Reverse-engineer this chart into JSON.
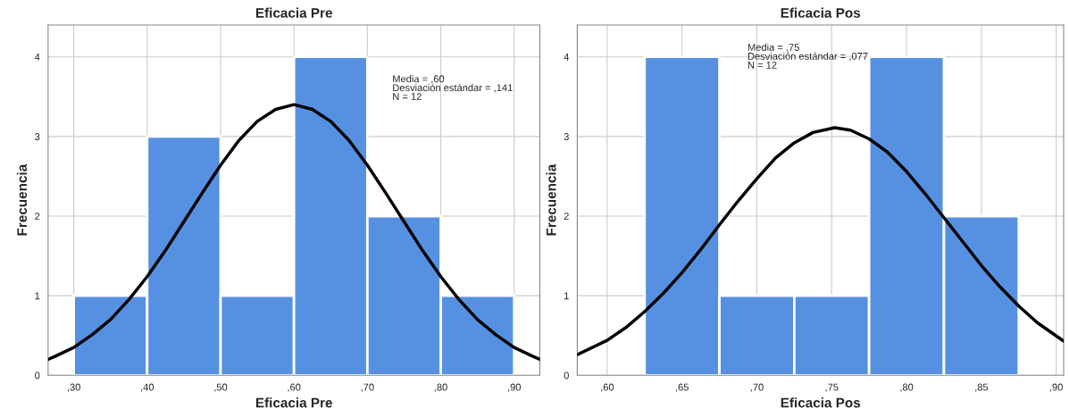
{
  "chart_data": [
    {
      "type": "histogram",
      "title": "Eficacia Pre",
      "xlabel": "Eficacia Pre",
      "ylabel": "Frecuencia",
      "bins": [
        30,
        40,
        50,
        60,
        70,
        80,
        90
      ],
      "values": [
        1,
        3,
        1,
        4,
        2,
        1
      ],
      "color": "#5591e0",
      "xlim": [
        26.5,
        93.5
      ],
      "xticks": [
        {
          "value": 30,
          "label": ",30"
        },
        {
          "value": 40,
          "label": ",40"
        },
        {
          "value": 50,
          "label": ",50"
        },
        {
          "value": 60,
          "label": ",60"
        },
        {
          "value": 70,
          "label": ",70"
        },
        {
          "value": 80,
          "label": ",80"
        },
        {
          "value": 90,
          "label": ",90"
        }
      ],
      "ylim": [
        0,
        4.4
      ],
      "yticks": [
        0,
        1,
        2,
        3,
        4
      ],
      "grid": true,
      "series": [
        {
          "type": "line",
          "color": "#000000",
          "x": [
            26.5,
            27.5,
            30,
            32.5,
            35,
            37.5,
            40,
            42.5,
            45,
            47.5,
            50,
            52.5,
            55,
            57.5,
            60,
            62.5,
            65,
            67.5,
            70,
            72.5,
            75,
            77.5,
            80,
            82.5,
            85,
            87.5,
            90,
            92.5,
            93.5
          ],
          "values": [
            0.2,
            0.24,
            0.35,
            0.51,
            0.7,
            0.95,
            1.24,
            1.57,
            1.93,
            2.29,
            2.64,
            2.95,
            3.19,
            3.34,
            3.4,
            3.34,
            3.19,
            2.95,
            2.64,
            2.29,
            1.93,
            1.57,
            1.24,
            0.95,
            0.7,
            0.51,
            0.35,
            0.24,
            0.2
          ]
        }
      ],
      "annotations": [
        "Media = ,60\nDesviación estándar = ,141\nN = 12"
      ]
    },
    {
      "type": "histogram",
      "title": "Eficacia Pos",
      "xlabel": "Eficacia Pos",
      "ylabel": "Frecuencia",
      "bins": [
        62.5,
        67.5,
        72.5,
        77.5,
        82.5,
        87.5
      ],
      "values": [
        4,
        1,
        1,
        4,
        2
      ],
      "color": "#5591e0",
      "xlim": [
        58,
        90.5
      ],
      "xticks": [
        {
          "value": 60,
          "label": ",60"
        },
        {
          "value": 65,
          "label": ",65"
        },
        {
          "value": 70,
          "label": ",70"
        },
        {
          "value": 75,
          "label": ",75"
        },
        {
          "value": 80,
          "label": ",80"
        },
        {
          "value": 85,
          "label": ",85"
        },
        {
          "value": 90,
          "label": ",90"
        }
      ],
      "ylim": [
        0,
        4.4
      ],
      "yticks": [
        0,
        1,
        2,
        3,
        4
      ],
      "grid": true,
      "series": [
        {
          "type": "line",
          "color": "#000000",
          "x": [
            58,
            60,
            61.25,
            62.5,
            63.75,
            65,
            66.25,
            67.5,
            68.75,
            70,
            71.25,
            72.5,
            73.75,
            75.2,
            76.25,
            77.5,
            78.75,
            80,
            81.25,
            82.5,
            83.75,
            85,
            86.25,
            87.5,
            88.75,
            90.5
          ],
          "values": [
            0.26,
            0.44,
            0.6,
            0.8,
            1.03,
            1.29,
            1.58,
            1.89,
            2.19,
            2.47,
            2.73,
            2.92,
            3.05,
            3.11,
            3.08,
            2.97,
            2.8,
            2.56,
            2.28,
            1.98,
            1.68,
            1.38,
            1.11,
            0.87,
            0.66,
            0.43
          ]
        }
      ],
      "annotations": [
        "Media = ,75\nDesviación estándar = ,077\nN = 12"
      ]
    }
  ]
}
